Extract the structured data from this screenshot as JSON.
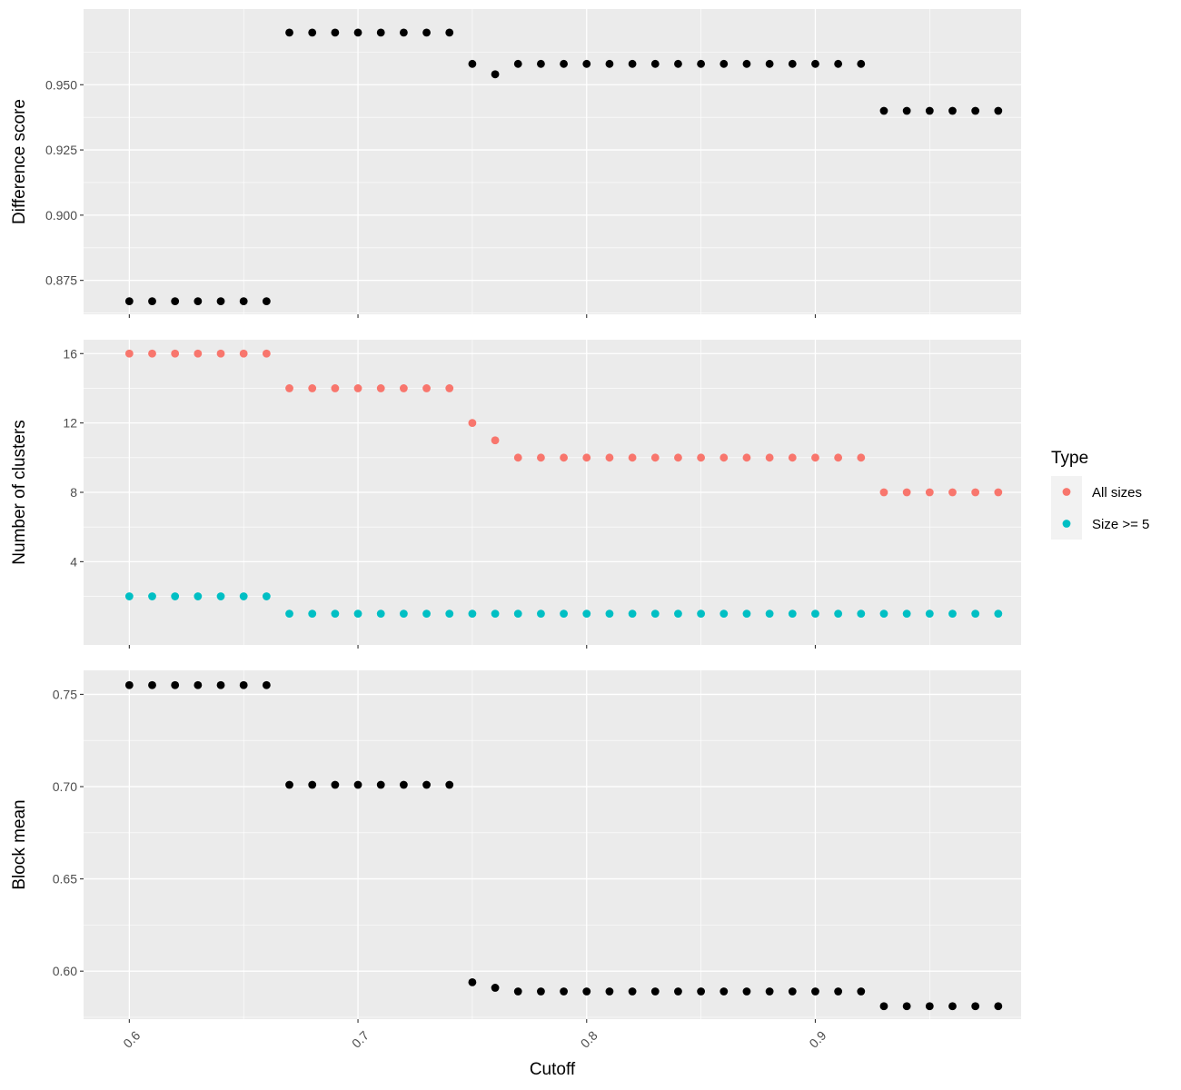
{
  "chart_data": [
    {
      "type": "scatter",
      "ylabel": "Difference score",
      "xlim": [
        0.58,
        0.99
      ],
      "ylim": [
        0.862,
        0.979
      ],
      "xticks": [
        "0.6",
        "0.7",
        "0.8",
        "0.9"
      ],
      "xtick_values": [
        0.6,
        0.7,
        0.8,
        0.9
      ],
      "yticks": [
        "0.875",
        "0.900",
        "0.925",
        "0.950"
      ],
      "ytick_values": [
        0.875,
        0.9,
        0.925,
        0.95
      ],
      "grid": true,
      "show_x_labels": false,
      "series": [
        {
          "color": "#000000",
          "x": [
            0.6,
            0.61,
            0.62,
            0.63,
            0.64,
            0.65,
            0.66,
            0.67,
            0.68,
            0.69,
            0.7,
            0.71,
            0.72,
            0.73,
            0.74,
            0.75,
            0.76,
            0.77,
            0.78,
            0.79,
            0.8,
            0.81,
            0.82,
            0.83,
            0.84,
            0.85,
            0.86,
            0.87,
            0.88,
            0.89,
            0.9,
            0.91,
            0.92,
            0.93,
            0.94,
            0.95,
            0.96,
            0.97,
            0.98
          ],
          "y": [
            0.867,
            0.867,
            0.867,
            0.867,
            0.867,
            0.867,
            0.867,
            0.97,
            0.97,
            0.97,
            0.97,
            0.97,
            0.97,
            0.97,
            0.97,
            0.958,
            0.954,
            0.958,
            0.958,
            0.958,
            0.958,
            0.958,
            0.958,
            0.958,
            0.958,
            0.958,
            0.958,
            0.958,
            0.958,
            0.958,
            0.958,
            0.958,
            0.958,
            0.94,
            0.94,
            0.94,
            0.94,
            0.94,
            0.94
          ]
        }
      ]
    },
    {
      "type": "scatter",
      "ylabel": "Number of clusters",
      "xlim": [
        0.58,
        0.99
      ],
      "ylim": [
        -0.8,
        16.8
      ],
      "xticks": [
        "0.6",
        "0.7",
        "0.8",
        "0.9"
      ],
      "xtick_values": [
        0.6,
        0.7,
        0.8,
        0.9
      ],
      "yticks": [
        "4",
        "8",
        "12",
        "16"
      ],
      "ytick_values": [
        4,
        8,
        12,
        16
      ],
      "grid": true,
      "show_x_labels": false,
      "legend": {
        "title": "Type",
        "placement": "right"
      },
      "series": [
        {
          "name": "All sizes",
          "color": "#F8766D",
          "x": [
            0.6,
            0.61,
            0.62,
            0.63,
            0.64,
            0.65,
            0.66,
            0.67,
            0.68,
            0.69,
            0.7,
            0.71,
            0.72,
            0.73,
            0.74,
            0.75,
            0.76,
            0.77,
            0.78,
            0.79,
            0.8,
            0.81,
            0.82,
            0.83,
            0.84,
            0.85,
            0.86,
            0.87,
            0.88,
            0.89,
            0.9,
            0.91,
            0.92,
            0.93,
            0.94,
            0.95,
            0.96,
            0.97,
            0.98
          ],
          "y": [
            16,
            16,
            16,
            16,
            16,
            16,
            16,
            14,
            14,
            14,
            14,
            14,
            14,
            14,
            14,
            12,
            11,
            10,
            10,
            10,
            10,
            10,
            10,
            10,
            10,
            10,
            10,
            10,
            10,
            10,
            10,
            10,
            10,
            8,
            8,
            8,
            8,
            8,
            8
          ]
        },
        {
          "name": "Size >= 5",
          "color": "#00BFC4",
          "x": [
            0.6,
            0.61,
            0.62,
            0.63,
            0.64,
            0.65,
            0.66,
            0.67,
            0.68,
            0.69,
            0.7,
            0.71,
            0.72,
            0.73,
            0.74,
            0.75,
            0.76,
            0.77,
            0.78,
            0.79,
            0.8,
            0.81,
            0.82,
            0.83,
            0.84,
            0.85,
            0.86,
            0.87,
            0.88,
            0.89,
            0.9,
            0.91,
            0.92,
            0.93,
            0.94,
            0.95,
            0.96,
            0.97,
            0.98
          ],
          "y": [
            2,
            2,
            2,
            2,
            2,
            2,
            2,
            1,
            1,
            1,
            1,
            1,
            1,
            1,
            1,
            1,
            1,
            1,
            1,
            1,
            1,
            1,
            1,
            1,
            1,
            1,
            1,
            1,
            1,
            1,
            1,
            1,
            1,
            1,
            1,
            1,
            1,
            1,
            1
          ]
        }
      ]
    },
    {
      "type": "scatter",
      "ylabel": "Block mean",
      "xlabel": "Cutoff",
      "xlim": [
        0.58,
        0.99
      ],
      "ylim": [
        0.574,
        0.763
      ],
      "xticks": [
        "0.6",
        "0.7",
        "0.8",
        "0.9"
      ],
      "xtick_values": [
        0.6,
        0.7,
        0.8,
        0.9
      ],
      "yticks": [
        "0.60",
        "0.65",
        "0.70",
        "0.75"
      ],
      "ytick_values": [
        0.6,
        0.65,
        0.7,
        0.75
      ],
      "grid": true,
      "show_x_labels": true,
      "series": [
        {
          "color": "#000000",
          "x": [
            0.6,
            0.61,
            0.62,
            0.63,
            0.64,
            0.65,
            0.66,
            0.67,
            0.68,
            0.69,
            0.7,
            0.71,
            0.72,
            0.73,
            0.74,
            0.75,
            0.76,
            0.77,
            0.78,
            0.79,
            0.8,
            0.81,
            0.82,
            0.83,
            0.84,
            0.85,
            0.86,
            0.87,
            0.88,
            0.89,
            0.9,
            0.91,
            0.92,
            0.93,
            0.94,
            0.95,
            0.96,
            0.97,
            0.98
          ],
          "y": [
            0.755,
            0.755,
            0.755,
            0.755,
            0.755,
            0.755,
            0.755,
            0.701,
            0.701,
            0.701,
            0.701,
            0.701,
            0.701,
            0.701,
            0.701,
            0.594,
            0.591,
            0.589,
            0.589,
            0.589,
            0.589,
            0.589,
            0.589,
            0.589,
            0.589,
            0.589,
            0.589,
            0.589,
            0.589,
            0.589,
            0.589,
            0.589,
            0.589,
            0.581,
            0.581,
            0.581,
            0.581,
            0.581,
            0.581
          ]
        }
      ]
    }
  ]
}
